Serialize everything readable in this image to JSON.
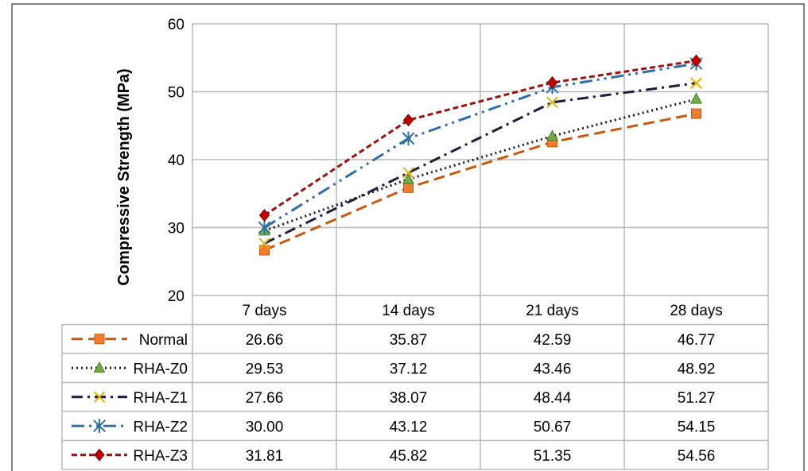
{
  "chart_data": {
    "type": "line",
    "ylabel": "Compressive Strength (MPa)",
    "xlabel": "",
    "title": "",
    "categories": [
      "7 days",
      "14 days",
      "21 days",
      "28 days"
    ],
    "ylim": [
      20,
      60
    ],
    "yticks": [
      20,
      30,
      40,
      50,
      60
    ],
    "grid": true,
    "legend": "data-table",
    "series": [
      {
        "name": "Normal",
        "values": [
          26.66,
          35.87,
          42.59,
          46.77
        ],
        "labels": [
          "26.66",
          "35.87",
          "42.59",
          "46.77"
        ],
        "color": "#c55a11",
        "marker": "square",
        "marker_color": "#ed7d31",
        "dash": "long-dash"
      },
      {
        "name": "RHA-Z0",
        "values": [
          29.53,
          37.12,
          43.46,
          48.92
        ],
        "labels": [
          "29.53",
          "37.12",
          "43.46",
          "48.92"
        ],
        "color": "#1a1a1a",
        "marker": "triangle",
        "marker_color": "#70ad47",
        "dash": "dotted"
      },
      {
        "name": "RHA-Z1",
        "values": [
          27.66,
          38.07,
          48.44,
          51.27
        ],
        "labels": [
          "27.66",
          "38.07",
          "48.44",
          "51.27"
        ],
        "color": "#1f1d3a",
        "marker": "x",
        "marker_color": "#e0b400",
        "dash": "dash-dot"
      },
      {
        "name": "RHA-Z2",
        "values": [
          30.0,
          43.12,
          50.67,
          54.15
        ],
        "labels": [
          "30.00",
          "43.12",
          "50.67",
          "54.15"
        ],
        "color": "#2f6ea3",
        "marker": "star",
        "marker_color": "#2f6ea3",
        "dash": "long-dash-dot-dot"
      },
      {
        "name": "RHA-Z3",
        "values": [
          31.81,
          45.82,
          51.35,
          54.56
        ],
        "labels": [
          "31.81",
          "45.82",
          "51.35",
          "54.56"
        ],
        "color": "#9b1111",
        "marker": "diamond",
        "marker_color": "#c00000",
        "dash": "dashed"
      }
    ]
  }
}
